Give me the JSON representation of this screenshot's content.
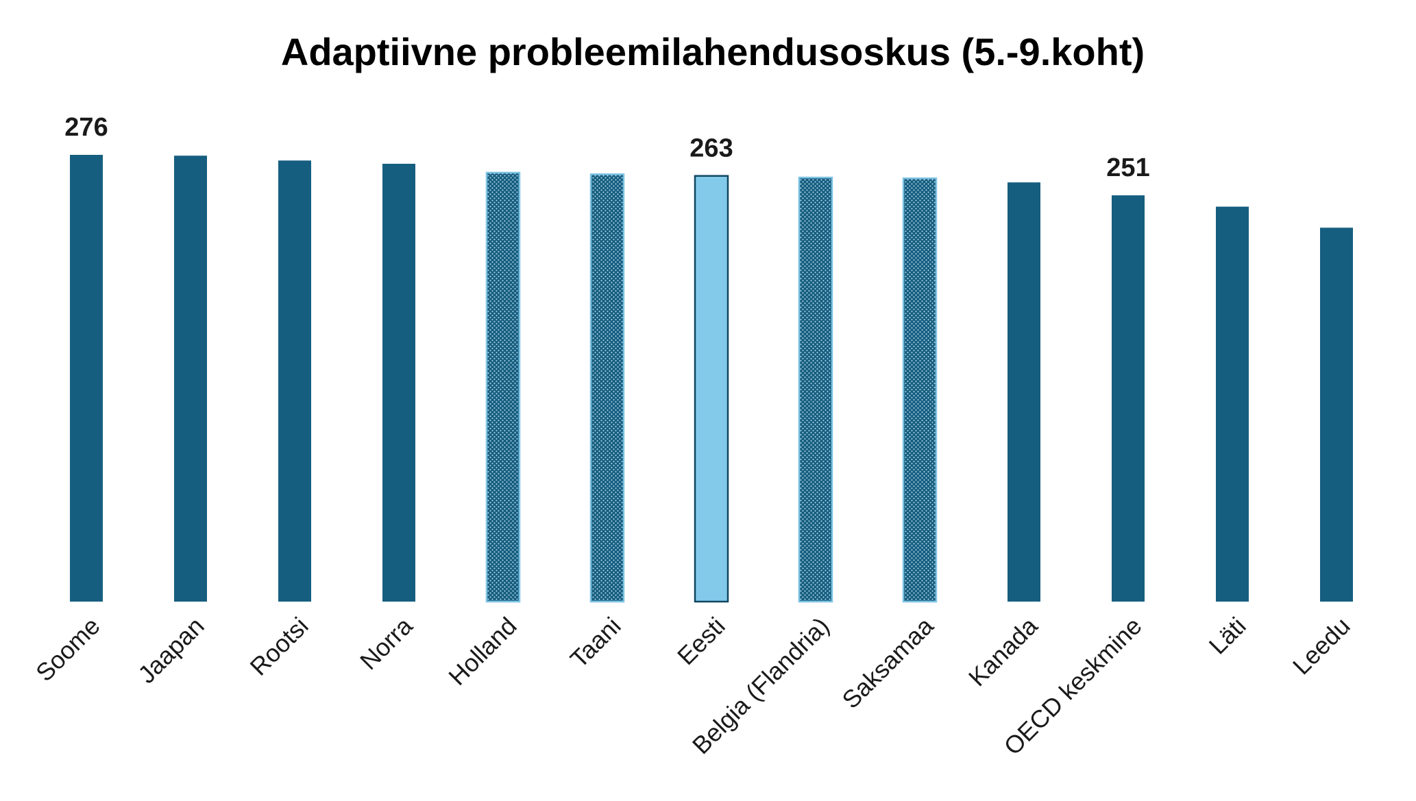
{
  "chart_data": {
    "type": "bar",
    "title": "Adaptiivne probleemilahendusoskus (5.-9.koht)",
    "xlabel": "",
    "ylabel": "",
    "grid": false,
    "legend": "none",
    "ylim": [
      0,
      276
    ],
    "categories": [
      "Soome",
      "Jaapan",
      "Rootsi",
      "Norra",
      "Holland",
      "Taani",
      "Eesti",
      "Belgia (Flandria)",
      "Saksamaa",
      "Kanada",
      "OECD keskmine",
      "Läti",
      "Leedu"
    ],
    "values": [
      276,
      275.5,
      272.5,
      270.5,
      265,
      264,
      263,
      262,
      261.5,
      259,
      251,
      244,
      231
    ],
    "styles": [
      "solid",
      "solid",
      "solid",
      "solid",
      "dotted",
      "dotted",
      "highlight",
      "dotted",
      "dotted",
      "solid",
      "solid",
      "solid",
      "solid"
    ],
    "data_labels": [
      "276",
      "",
      "",
      "",
      "",
      "",
      "263",
      "",
      "",
      "",
      "251",
      "",
      ""
    ],
    "colors": {
      "solid": "#165e80",
      "dotted_fill": "#165e80",
      "dotted_border": "#7ec3e3",
      "highlight_fill": "#82c9ea",
      "highlight_border": "#10465f"
    }
  }
}
